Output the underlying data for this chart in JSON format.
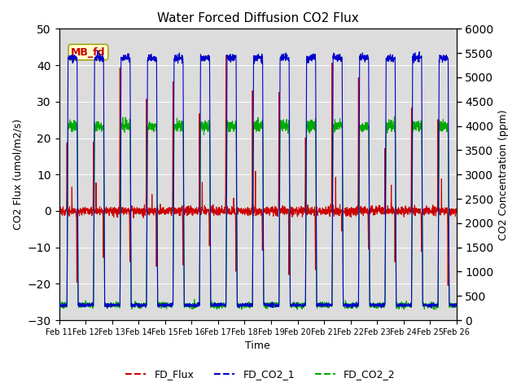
{
  "title": "Water Forced Diffusion CO2 Flux",
  "xlabel": "Time",
  "ylabel_left": "CO2 Flux (umol/m2/s)",
  "ylabel_right": "CO2 Concentration (ppm)",
  "ylim_left": [
    -30,
    50
  ],
  "ylim_right": [
    0,
    6000
  ],
  "xtick_labels": [
    "Feb 11",
    "Feb 12",
    "Feb 13",
    "Feb 14",
    "Feb 15",
    "Feb 16",
    "Feb 17",
    "Feb 18",
    "Feb 19",
    "Feb 20",
    "Feb 21",
    "Feb 22",
    "Feb 23",
    "Feb 24",
    "Feb 25",
    "Feb 26"
  ],
  "yticks_left": [
    -30,
    -20,
    -10,
    0,
    10,
    20,
    30,
    40,
    50
  ],
  "yticks_right": [
    0,
    500,
    1000,
    1500,
    2000,
    2500,
    3000,
    3500,
    4000,
    4500,
    5000,
    5500,
    6000
  ],
  "legend_label1": "FD_Flux",
  "legend_label2": "FD_CO2_1",
  "legend_label3": "FD_CO2_2",
  "color_flux": "#cc0000",
  "color_co2_1": "#0000cc",
  "color_co2_2": "#00aa00",
  "annotation_text": "MB_fd",
  "annotation_color": "#cc0000",
  "annotation_bg": "#ffffcc",
  "bg_color": "#dcdcdc",
  "linewidth": 0.8,
  "days": 15,
  "pts_per_day": 144,
  "seed": 42
}
